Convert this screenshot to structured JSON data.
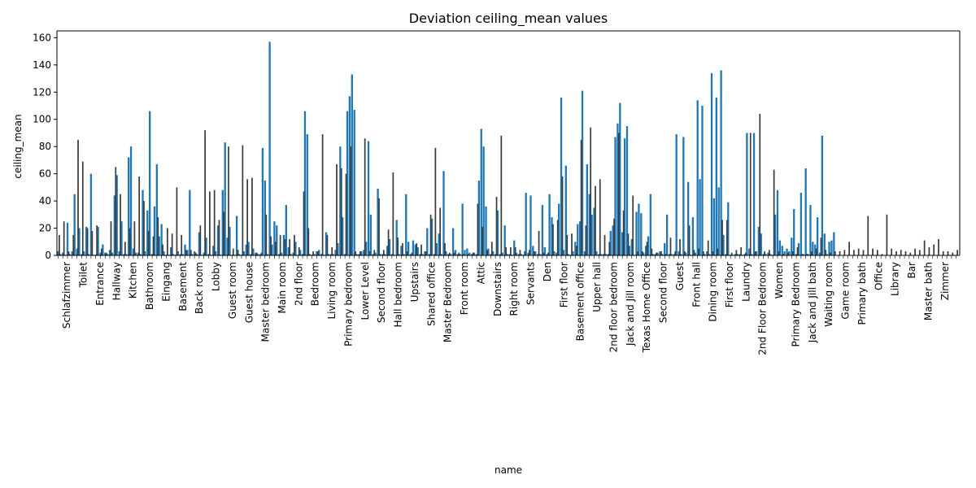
{
  "chart_data": {
    "type": "bar",
    "title": "Deviation ceiling_mean values",
    "xlabel": "name",
    "ylabel": "ceiling_mean",
    "ylim": [
      0,
      165
    ],
    "yticks": [
      0,
      20,
      40,
      60,
      80,
      100,
      120,
      140,
      160
    ],
    "grid": false,
    "legend": "none",
    "colors": {
      "blue": "#1f77b4",
      "dark": "#3c3c3c"
    },
    "category_labels_visible": [
      "Schlafzimmer",
      "Toilet",
      "Entrance",
      "Hallway",
      "Kitchen",
      "Bathroom",
      "Eingang",
      "Basement",
      "Back room",
      "Lobby",
      "Guest room",
      "Guest house",
      "Master bedroom",
      "Main room",
      "2nd floor",
      "Bedroom",
      "Living room",
      "Primary bedroom",
      "Lower Level",
      "Second floor",
      "Hall bedroom",
      "Upstairs",
      "Shared office",
      "Master Bedroom",
      "Front room",
      "Attic",
      "Downstairs",
      "Right room",
      "Servants",
      "Den",
      "First floor",
      "Basement office",
      "Upper hall",
      "2nd floor bedroom",
      "Jack and Jill room",
      "Texas Home Office",
      "Second floor",
      "Guest",
      "Front hall",
      "Dining room",
      "First floor",
      "Laundry",
      "2nd Floor Bedroom",
      "Women",
      "Primary Bedroom",
      "Jack and Jill bath",
      "Waiting room",
      "Game room",
      "Primary bath",
      "Office",
      "Library",
      "Bar",
      "Master bath",
      "Zimmer"
    ],
    "series": [
      {
        "color": "blue",
        "values": [
          3,
          1,
          2,
          0.5,
          24,
          1,
          3,
          45,
          5,
          20,
          1,
          3,
          21,
          1,
          60,
          0.5,
          0.5,
          21,
          2,
          8,
          2,
          1,
          4,
          2,
          44,
          59,
          3,
          25,
          1,
          1,
          72,
          80,
          5,
          2,
          2,
          1,
          48,
          3,
          33,
          106,
          1,
          36,
          67,
          14,
          23,
          3,
          0.5,
          0.5,
          6,
          1,
          0.5,
          3,
          1,
          1,
          8,
          4,
          48,
          1,
          3,
          1,
          17,
          0.5,
          2,
          13,
          1,
          0.5,
          7,
          3,
          22,
          0.5,
          48,
          83,
          13,
          21,
          0.5,
          0.5,
          29,
          1,
          0.5,
          3,
          8,
          10,
          1,
          5,
          2,
          1,
          1,
          79,
          55,
          1,
          157,
          8,
          25,
          22,
          1,
          2,
          15,
          37,
          6,
          1,
          2,
          10,
          0.5,
          4,
          1,
          106,
          89,
          1,
          0.5,
          1,
          3,
          4,
          1,
          0.5,
          17,
          1,
          1,
          1,
          4,
          9,
          80,
          28,
          1,
          106,
          117,
          133,
          107,
          1,
          1,
          3,
          4,
          10,
          84,
          30,
          1,
          2,
          49,
          1,
          1,
          1,
          7,
          12,
          1,
          0.5,
          26,
          1,
          7,
          1,
          45,
          10,
          1,
          11,
          8,
          6,
          1,
          1,
          3,
          20,
          1,
          27,
          1,
          9,
          16,
          1,
          62,
          3,
          1,
          1,
          20,
          4,
          1,
          1,
          38,
          4,
          5,
          2,
          1,
          2,
          1,
          55,
          93,
          80,
          36,
          5,
          1,
          3,
          1,
          33,
          1,
          2,
          22,
          1,
          1,
          0.5,
          11,
          2,
          1,
          1,
          0.5,
          46,
          2,
          44,
          7,
          3,
          1,
          1,
          37,
          6,
          1,
          45,
          28,
          3,
          2,
          38,
          116,
          4,
          66,
          1,
          0.5,
          3,
          10,
          23,
          25,
          121,
          3,
          67,
          45,
          30,
          35,
          3,
          1,
          1,
          1,
          1,
          1,
          18,
          22,
          87,
          97,
          112,
          17,
          86,
          95,
          7,
          12,
          0.5,
          32,
          38,
          31,
          2,
          7,
          14,
          45,
          1,
          1,
          2,
          3,
          1,
          9,
          30,
          1,
          1,
          1,
          89,
          3,
          1,
          87,
          2,
          54,
          0.5,
          28,
          2,
          114,
          56,
          110,
          1,
          3,
          1,
          134,
          42,
          116,
          50,
          136,
          15,
          1,
          39,
          0.5,
          0.5,
          1,
          1,
          1,
          0.5,
          1,
          90,
          5,
          1,
          90,
          3,
          21,
          16,
          1,
          1,
          2,
          1,
          0.5,
          30,
          48,
          11,
          7,
          3,
          5,
          3,
          13,
          34,
          1,
          9,
          46,
          1,
          64,
          1,
          37,
          10,
          8,
          28,
          2,
          88,
          16,
          1,
          10,
          11,
          17
        ]
      },
      {
        "color": "dark",
        "values": [
          15,
          25,
          3,
          15,
          85,
          69,
          20,
          18,
          22,
          5,
          2,
          25,
          65,
          45,
          10,
          20,
          25,
          58,
          40,
          18,
          14,
          28,
          8,
          20,
          16,
          50,
          15,
          4,
          4,
          2,
          22,
          92,
          47,
          48,
          26,
          32,
          80,
          5,
          4,
          81,
          56,
          57,
          2,
          2,
          30,
          14,
          10,
          15,
          12,
          12,
          15,
          6,
          47,
          20,
          3,
          3,
          89,
          15,
          6,
          67,
          64,
          60,
          80,
          3,
          3,
          86,
          3,
          4,
          42,
          4,
          19,
          61,
          13,
          9,
          3,
          2,
          9,
          8,
          3,
          30,
          79,
          35,
          9,
          2,
          2,
          2,
          1,
          1,
          2,
          38,
          21,
          4,
          10,
          43,
          88,
          6,
          6,
          6,
          4,
          3,
          4,
          3,
          18,
          2,
          2,
          23,
          26,
          58,
          15,
          16,
          7,
          85,
          22,
          94,
          51,
          56,
          15,
          10,
          27,
          90,
          33,
          16,
          44,
          3,
          3,
          10,
          5,
          2,
          3,
          1,
          13,
          3,
          12,
          3,
          22,
          4,
          5,
          3,
          11,
          3,
          5,
          26,
          26,
          2,
          4,
          6,
          2,
          90,
          3,
          104,
          3,
          4,
          63,
          3,
          1,
          2,
          3,
          6,
          1,
          1,
          3,
          5,
          13,
          4,
          2,
          3,
          3,
          4,
          10,
          4,
          5,
          4,
          29,
          5,
          4,
          1,
          30,
          5,
          3,
          4,
          3,
          2,
          5,
          4,
          11,
          6,
          8,
          12,
          3,
          3,
          2,
          4
        ]
      }
    ]
  }
}
